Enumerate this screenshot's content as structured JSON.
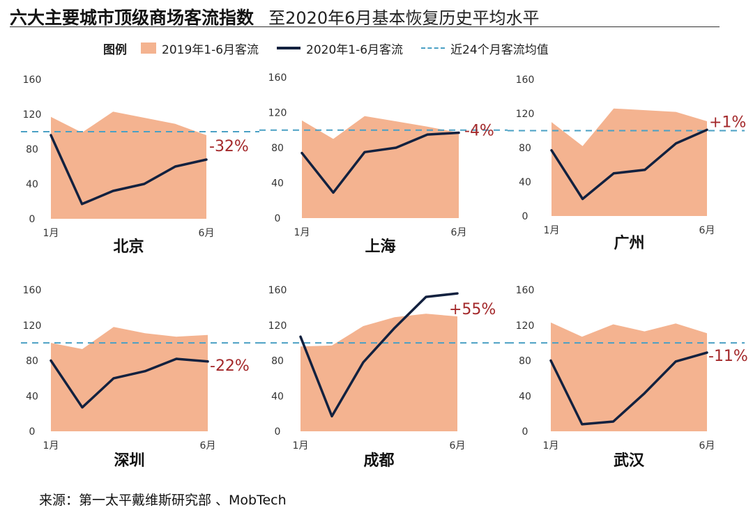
{
  "title": "六大主要城市顶级商场客流指数",
  "subtitle": "至2020年6月基本恢复历史平均水平",
  "legend": {
    "title": "图例",
    "area": "2019年1-6月客流",
    "line": "2020年1-6月客流",
    "dash": "近24个月客流均值"
  },
  "source": "来源：第一太平戴维斯研究部 、MobTech",
  "colors": {
    "area": "#f4b390",
    "line": "#12213f",
    "dash": "#4aa0c4",
    "change": "#a3282a"
  },
  "chart_data": [
    {
      "type": "area",
      "city": "北京",
      "change": "-32%",
      "x_ticks": [
        "1月",
        "6月"
      ],
      "y_ticks": [
        "0",
        "40",
        "80",
        "120",
        "160"
      ],
      "ylim": [
        0,
        160
      ],
      "average": 100,
      "series_2019": [
        117,
        99,
        123,
        116,
        109,
        96
      ],
      "series_2020": [
        96,
        17,
        32,
        40,
        60,
        68
      ]
    },
    {
      "type": "area",
      "city": "上海",
      "change": "-4%",
      "x_ticks": [
        "1月",
        "6月"
      ],
      "y_ticks": [
        "0",
        "40",
        "80",
        "120",
        "160"
      ],
      "ylim": [
        0,
        160
      ],
      "average": 100,
      "series_2019": [
        111,
        90,
        116,
        110,
        104,
        97
      ],
      "series_2020": [
        74,
        29,
        75,
        80,
        95,
        97
      ]
    },
    {
      "type": "area",
      "city": "广州",
      "change": "+1%",
      "x_ticks": [
        "1月",
        "6月"
      ],
      "y_ticks": [
        "0",
        "40",
        "80",
        "120",
        "160"
      ],
      "ylim": [
        0,
        160
      ],
      "average": 100,
      "series_2019": [
        110,
        82,
        126,
        124,
        122,
        111
      ],
      "series_2020": [
        77,
        20,
        50,
        54,
        85,
        101
      ]
    },
    {
      "type": "area",
      "city": "深圳",
      "change": "-22%",
      "x_ticks": [
        "1月",
        "6月"
      ],
      "y_ticks": [
        "0",
        "40",
        "80",
        "120",
        "160"
      ],
      "ylim": [
        0,
        160
      ],
      "average": 100,
      "series_2019": [
        100,
        93,
        118,
        111,
        107,
        109
      ],
      "series_2020": [
        80,
        27,
        60,
        68,
        82,
        79
      ]
    },
    {
      "type": "area",
      "city": "成都",
      "change": "+55%",
      "x_ticks": [
        "1月",
        "6月"
      ],
      "y_ticks": [
        "0",
        "40",
        "80",
        "120",
        "160"
      ],
      "ylim": [
        0,
        160
      ],
      "average": 100,
      "series_2019": [
        96,
        97,
        119,
        129,
        133,
        130
      ],
      "series_2020": [
        107,
        17,
        78,
        117,
        152,
        156
      ]
    },
    {
      "type": "area",
      "city": "武汉",
      "change": "-11%",
      "x_ticks": [
        "1月",
        "6月"
      ],
      "y_ticks": [
        "0",
        "40",
        "80",
        "120",
        "160"
      ],
      "ylim": [
        0,
        160
      ],
      "average": 100,
      "series_2019": [
        123,
        107,
        121,
        113,
        122,
        111
      ],
      "series_2020": [
        80,
        8,
        11,
        43,
        79,
        89
      ]
    }
  ]
}
